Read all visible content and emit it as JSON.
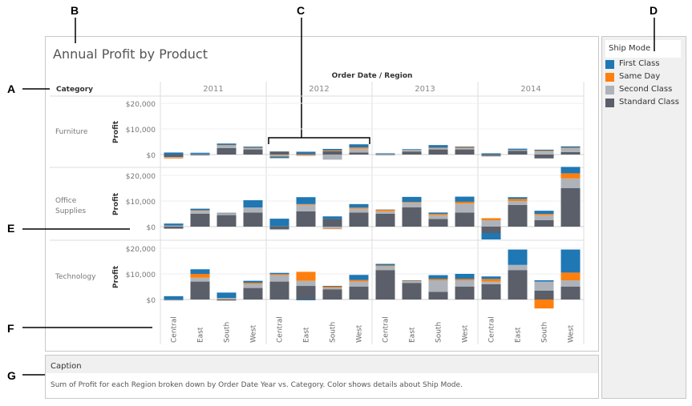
{
  "callouts": [
    "A",
    "B",
    "C",
    "D",
    "E",
    "F",
    "G"
  ],
  "title": "Annual Profit by Product",
  "header": {
    "columns_label": "Order Date / Region",
    "rows_label": "Category",
    "measure_label": "Profit"
  },
  "legend": {
    "title": "Ship Mode",
    "items": [
      {
        "label": "First Class",
        "color": "#1f77b4"
      },
      {
        "label": "Same Day",
        "color": "#ff7f0e"
      },
      {
        "label": "Second Class",
        "color": "#aeb3ba"
      },
      {
        "label": "Standard Class",
        "color": "#5a5f6a"
      }
    ]
  },
  "caption": {
    "title": "Caption",
    "text": "Sum of Profit for each Region broken down by Order Date Year vs. Category.  Color shows details about Ship Mode."
  },
  "chart_data": {
    "type": "bar",
    "stacked": true,
    "years": [
      "2011",
      "2012",
      "2013",
      "2014"
    ],
    "regions": [
      "Central",
      "East",
      "South",
      "West"
    ],
    "categories": [
      "Furniture",
      "Office Supplies",
      "Technology"
    ],
    "y_ticks": [
      "$20,000",
      "$10,000",
      "$0"
    ],
    "y_tick_values": [
      20000,
      10000,
      0
    ],
    "ylim": [
      -5000,
      25000
    ],
    "series_order": [
      "Standard Class",
      "Second Class",
      "Same Day",
      "First Class"
    ],
    "values": {
      "Furniture": {
        "2011": [
          [
            -1000,
            -200,
            -300,
            800
          ],
          [
            -300,
            200,
            0,
            500
          ],
          [
            2500,
            1000,
            200,
            600
          ],
          [
            2000,
            500,
            200,
            400
          ]
        ],
        "2012": [
          [
            1200,
            -500,
            -300,
            -600
          ],
          [
            500,
            -300,
            -200,
            600
          ],
          [
            1300,
            -2000,
            300,
            600
          ],
          [
            800,
            1500,
            500,
            1200
          ]
        ],
        "2013": [
          [
            -200,
            100,
            100,
            300
          ],
          [
            1200,
            500,
            100,
            300
          ],
          [
            2000,
            500,
            200,
            1000
          ],
          [
            2000,
            500,
            300,
            300
          ]
        ],
        "2014": [
          [
            -500,
            -300,
            100,
            400
          ],
          [
            1500,
            200,
            100,
            500
          ],
          [
            -1500,
            1200,
            300,
            400
          ],
          [
            1000,
            1500,
            200,
            500
          ]
        ]
      },
      "Office Supplies": {
        "2011": [
          [
            -800,
            300,
            100,
            800
          ],
          [
            5000,
            1200,
            200,
            600
          ],
          [
            4500,
            600,
            100,
            200
          ],
          [
            5500,
            2000,
            0,
            2800
          ]
        ],
        "2012": [
          [
            -1000,
            -300,
            100,
            3000
          ],
          [
            6000,
            2500,
            300,
            2700
          ],
          [
            3000,
            -800,
            -200,
            1000
          ],
          [
            5500,
            1500,
            400,
            1400
          ]
        ],
        "2013": [
          [
            5000,
            1000,
            600,
            100
          ],
          [
            7500,
            1800,
            300,
            2000
          ],
          [
            3000,
            1500,
            500,
            500
          ],
          [
            5500,
            3500,
            700,
            2000
          ]
        ],
        "2014": [
          [
            -2500,
            2500,
            800,
            -2500
          ],
          [
            8500,
            1500,
            800,
            700
          ],
          [
            2500,
            2000,
            500,
            1200
          ],
          [
            15000,
            3800,
            2000,
            2500
          ]
        ]
      },
      "Technology": {
        "2011": [
          [
            -200,
            -200,
            0,
            1300
          ],
          [
            7000,
            1500,
            1500,
            1800
          ],
          [
            -400,
            500,
            100,
            2100
          ],
          [
            4500,
            1500,
            500,
            800
          ]
        ],
        "2012": [
          [
            7000,
            2500,
            400,
            500
          ],
          [
            5300,
            2000,
            3500,
            -300
          ],
          [
            4000,
            500,
            500,
            300
          ],
          [
            5000,
            2000,
            600,
            2000
          ]
        ],
        "2013": [
          [
            11500,
            1500,
            300,
            600
          ],
          [
            6500,
            600,
            200,
            200
          ],
          [
            3000,
            4500,
            500,
            1500
          ],
          [
            5000,
            2500,
            500,
            2000
          ]
        ],
        "2014": [
          [
            6000,
            1000,
            1000,
            1000
          ],
          [
            11500,
            2000,
            0,
            6000
          ],
          [
            3500,
            3500,
            -3500,
            500
          ],
          [
            5000,
            2500,
            3000,
            9000
          ]
        ]
      }
    }
  }
}
